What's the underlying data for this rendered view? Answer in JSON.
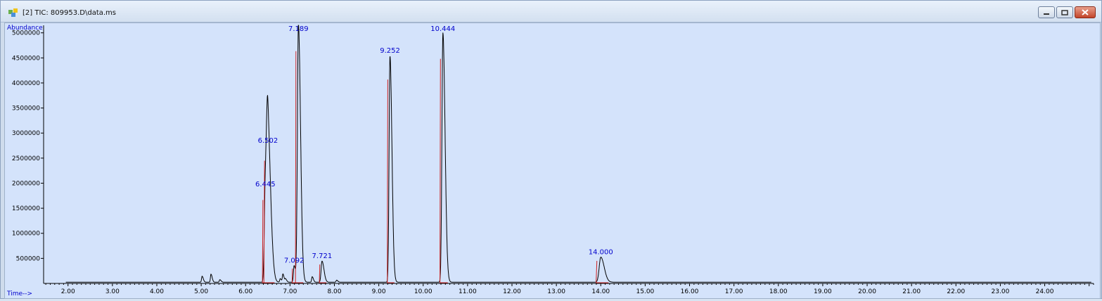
{
  "window": {
    "title": "[2] TIC: 809953.D\\data.ms",
    "controls": [
      "minimize-icon",
      "maximize-icon",
      "close-icon"
    ]
  },
  "colors": {
    "background": "#d4e3fb",
    "trace": "#000000",
    "peak_label": "#0000cc",
    "baseline": "#cc2222",
    "axis_label": "#0000cc"
  },
  "chart_data": {
    "type": "line",
    "ylabel": "Abundance",
    "xlabel": "Time-->",
    "xlim": [
      1.45,
      25.1
    ],
    "ylim": [
      0,
      5150000
    ],
    "y_ticks": [
      500000,
      1000000,
      1500000,
      2000000,
      2500000,
      3000000,
      3500000,
      4000000,
      4500000,
      5000000
    ],
    "y_tick_labels": [
      "500000",
      "1000000",
      "1500000",
      "2000000",
      "2500000",
      "3000000",
      "3500000",
      "4000000",
      "4500000",
      "5000000"
    ],
    "x_ticks": [
      2,
      3,
      4,
      5,
      6,
      7,
      8,
      9,
      10,
      11,
      12,
      13,
      14,
      15,
      16,
      17,
      18,
      19,
      20,
      21,
      22,
      23,
      24
    ],
    "x_tick_labels": [
      "2.00",
      "3.00",
      "4.00",
      "5.00",
      "6.00",
      "7.00",
      "8.00",
      "9.00",
      "10.00",
      "11.00",
      "12.00",
      "13.00",
      "14.00",
      "15.00",
      "16.00",
      "17.00",
      "18.00",
      "19.00",
      "20.00",
      "21.00",
      "22.00",
      "23.00",
      "24.00"
    ],
    "peaks": [
      {
        "rt": 6.445,
        "label": "6.445",
        "height": 1850000,
        "width": 0.022
      },
      {
        "rt": 6.502,
        "label": "6.502",
        "height": 2720000,
        "width": 0.03
      },
      {
        "rt": 7.092,
        "label": "7.092",
        "height": 330000,
        "width": 0.015
      },
      {
        "rt": 7.189,
        "label": "7.189",
        "height": 5150000,
        "width": 0.022
      },
      {
        "rt": 7.721,
        "label": "7.721",
        "height": 420000,
        "width": 0.02
      },
      {
        "rt": 9.252,
        "label": "9.252",
        "height": 4520000,
        "width": 0.02
      },
      {
        "rt": 10.444,
        "label": "10.444",
        "height": 4980000,
        "width": 0.022
      },
      {
        "rt": 14.0,
        "label": "14.000",
        "height": 500000,
        "width": 0.035
      }
    ],
    "minor_peaks": [
      {
        "rt": 5.02,
        "height": 120000
      },
      {
        "rt": 5.22,
        "height": 160000
      },
      {
        "rt": 5.42,
        "height": 50000
      },
      {
        "rt": 6.78,
        "height": 70000
      },
      {
        "rt": 6.84,
        "height": 160000
      },
      {
        "rt": 6.9,
        "height": 60000
      },
      {
        "rt": 7.5,
        "height": 110000
      },
      {
        "rt": 8.05,
        "height": 40000
      }
    ]
  }
}
